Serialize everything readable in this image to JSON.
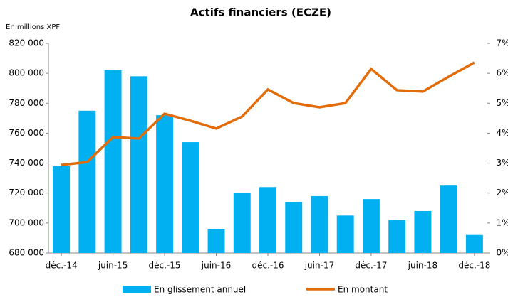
{
  "chart_data": {
    "type": "bar-line",
    "title": "Actifs financiers (ECZE)",
    "y_axis_label": "En millions XPF",
    "categories": [
      "déc.-14",
      null,
      "juin-15",
      null,
      "déc.-15",
      null,
      "juin-16",
      null,
      "déc.-16",
      null,
      "juin-17",
      null,
      "déc.-17",
      null,
      "juin-18",
      null,
      "déc.-18"
    ],
    "series": [
      {
        "name": "En glissement annuel",
        "type": "bar",
        "axis": "y2",
        "color": "#00b0f0",
        "values": [
          2.9,
          4.75,
          6.1,
          5.9,
          4.6,
          3.7,
          0.8,
          2.0,
          2.2,
          1.7,
          1.9,
          1.25,
          1.8,
          1.1,
          1.4,
          2.25,
          0.6
        ]
      },
      {
        "name": "En montant",
        "type": "line",
        "axis": "y",
        "color": "#e36c0a",
        "values": [
          738800,
          740700,
          757400,
          756400,
          773000,
          768300,
          763100,
          771100,
          789200,
          780100,
          777300,
          780100,
          802900,
          788700,
          787800,
          797700,
          807200
        ]
      }
    ],
    "ylim": [
      680000,
      820000
    ],
    "yticks": [
      {
        "value": 680000,
        "label": "680 000"
      },
      {
        "value": 700000,
        "label": "700 000"
      },
      {
        "value": 720000,
        "label": "720 000"
      },
      {
        "value": 740000,
        "label": "740 000"
      },
      {
        "value": 760000,
        "label": "760 000"
      },
      {
        "value": 780000,
        "label": "780 000"
      },
      {
        "value": 800000,
        "label": "800 000"
      },
      {
        "value": 820000,
        "label": "820 000"
      }
    ],
    "y2lim": [
      0,
      7
    ],
    "y2ticks": [
      {
        "value": 0,
        "label": "0%"
      },
      {
        "value": 1,
        "label": "1%"
      },
      {
        "value": 2,
        "label": "2%"
      },
      {
        "value": 3,
        "label": "3%"
      },
      {
        "value": 4,
        "label": "4%"
      },
      {
        "value": 5,
        "label": "5%"
      },
      {
        "value": 6,
        "label": "6%"
      },
      {
        "value": 7,
        "label": "7%"
      }
    ],
    "legend": "bottom"
  }
}
